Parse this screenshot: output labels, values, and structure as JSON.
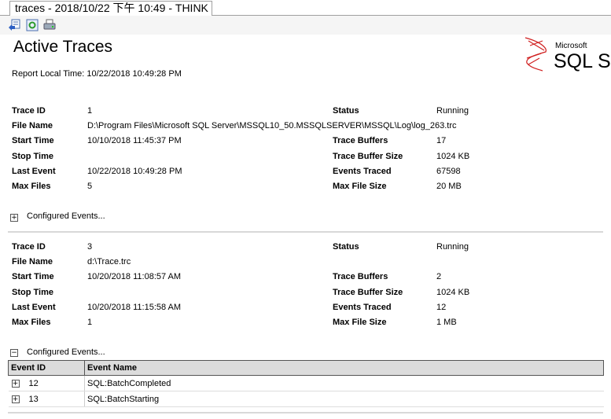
{
  "window": {
    "tab_title": "traces - 2018/10/22 下午 10:49 - THINK"
  },
  "toolbar": {
    "icons": [
      "back-icon",
      "refresh-icon",
      "print-icon"
    ]
  },
  "report": {
    "title": "Active Traces",
    "local_time": "Report Local Time: 10/22/2018 10:49:28 PM",
    "logo_brand": "Microsoft",
    "logo_product": "SQL Server"
  },
  "labels": {
    "trace_id": "Trace ID",
    "file_name": "File Name",
    "start_time": "Start Time",
    "stop_time": "Stop Time",
    "last_event": "Last Event",
    "max_files": "Max Files",
    "status": "Status",
    "trace_buffers": "Trace Buffers",
    "trace_buffer_size": "Trace Buffer Size",
    "events_traced": "Events Traced",
    "max_file_size": "Max File Size",
    "configured_events": "Configured Events..."
  },
  "traces": [
    {
      "trace_id": "1",
      "file_name": "D:\\Program Files\\Microsoft SQL Server\\MSSQL10_50.MSSQLSERVER\\MSSQL\\Log\\log_263.trc",
      "start_time": "10/10/2018 11:45:37 PM",
      "stop_time": "",
      "last_event": "10/22/2018 10:49:28 PM",
      "max_files": "5",
      "status": "Running",
      "trace_buffers": "17",
      "trace_buffer_size": "1024 KB",
      "events_traced": "67598",
      "max_file_size": "20 MB",
      "expanded": false
    },
    {
      "trace_id": "3",
      "file_name": "d:\\Trace.trc",
      "start_time": "10/20/2018 11:08:57 AM",
      "stop_time": "",
      "last_event": "10/20/2018 11:15:58 AM",
      "max_files": "1",
      "status": "Running",
      "trace_buffers": "2",
      "trace_buffer_size": "1024 KB",
      "events_traced": "12",
      "max_file_size": "1 MB",
      "expanded": true
    }
  ],
  "events_table": {
    "headers": [
      "Event ID",
      "Event Name"
    ],
    "rows": [
      {
        "id": "12",
        "name": "SQL:BatchCompleted"
      },
      {
        "id": "13",
        "name": "SQL:BatchStarting"
      }
    ]
  }
}
